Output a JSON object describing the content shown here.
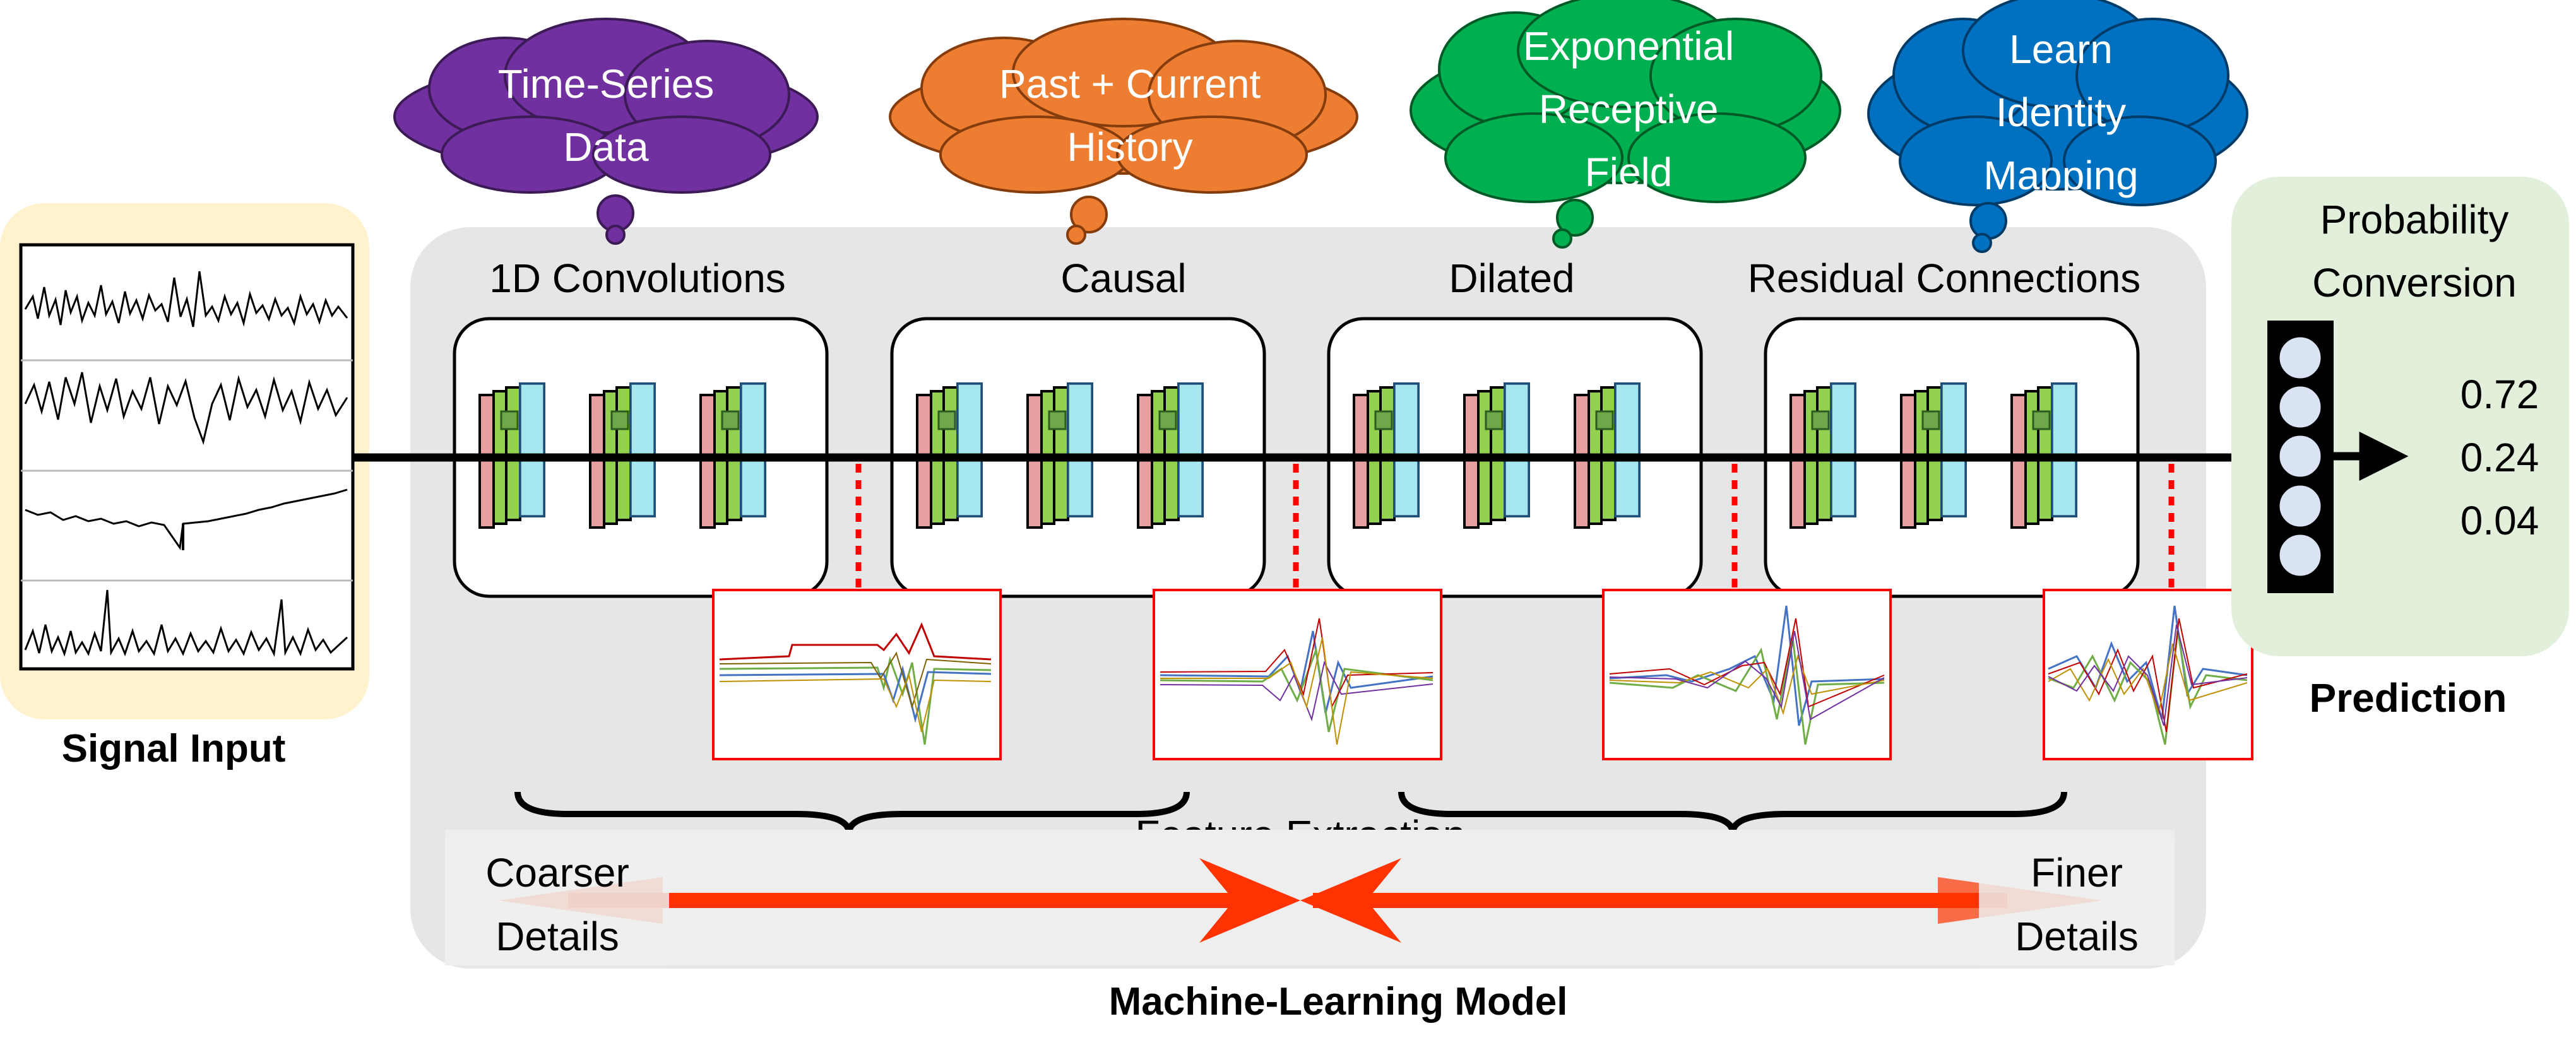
{
  "input": {
    "label": "Signal Input"
  },
  "thought_clouds": [
    {
      "lines": [
        "Time-Series",
        "Data"
      ],
      "color": "#7030a0"
    },
    {
      "lines": [
        "Past + Current",
        "History"
      ],
      "color": "#ed7d31"
    },
    {
      "lines": [
        "Exponential",
        "Receptive",
        "Field"
      ],
      "color": "#00b050"
    },
    {
      "lines": [
        "Learn",
        "Identity",
        "Mapping"
      ],
      "color": "#0070c0"
    }
  ],
  "blocks": [
    {
      "label": "1D Convolutions"
    },
    {
      "label": "Causal"
    },
    {
      "label": "Dilated"
    },
    {
      "label": "Residual Connections"
    }
  ],
  "feature_extraction": {
    "label": "Feature Extraction"
  },
  "scale_axis": {
    "left_lines": [
      "Coarser",
      "Details"
    ],
    "right_lines": [
      "Finer",
      "Details"
    ],
    "arrow_color": "#ff3300"
  },
  "model_label": "Machine-Learning Model",
  "prediction": {
    "title_lines": [
      "Probability",
      "Conversion"
    ],
    "values": [
      "0.72",
      "0.24",
      "0.04"
    ],
    "label": "Prediction"
  },
  "colors": {
    "input_panel": "#fff2cc",
    "model_panel": "#e7e6e6",
    "prediction_panel": "#e2efda",
    "neuron": "#dae3f3",
    "dotted_connector": "#ff0000",
    "plot_frame": "#ff0000",
    "kernel_red": "#e6a0a0",
    "kernel_green": "#92d050",
    "kernel_cyan": "#a6e6ef"
  }
}
